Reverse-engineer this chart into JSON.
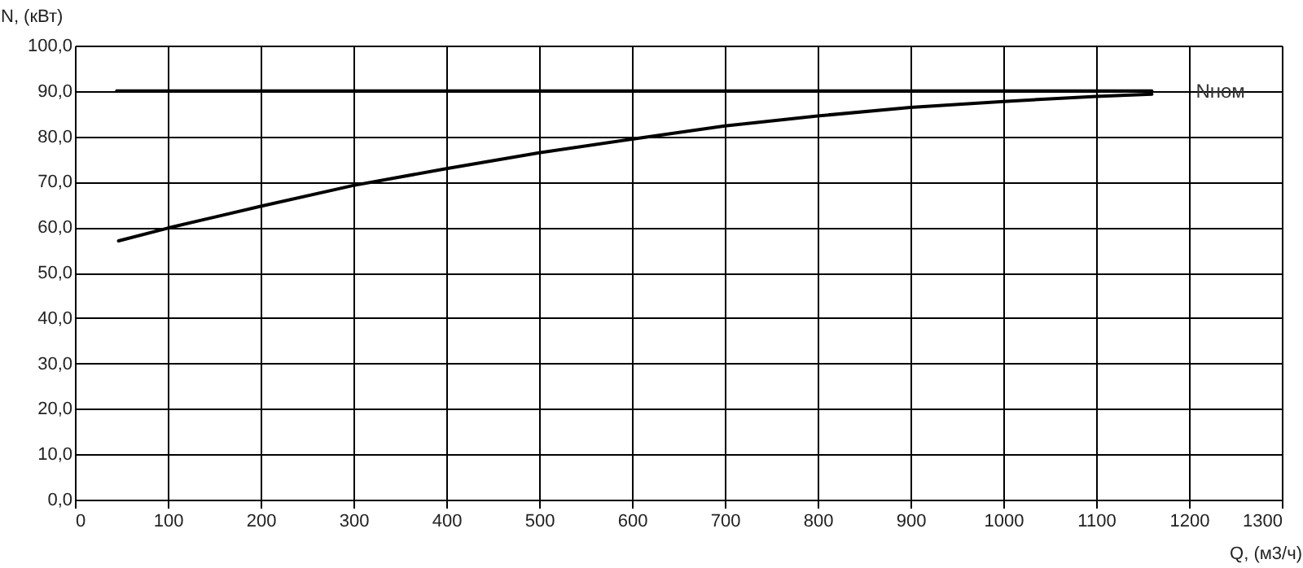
{
  "chart_data": {
    "type": "line",
    "xlabel": "Q, (м3/ч)",
    "ylabel": "N, (кВт)",
    "series": [
      {
        "x": [
          47,
          100,
          200,
          300,
          400,
          500,
          600,
          700,
          800,
          900,
          1000,
          1100,
          1160
        ],
        "values": [
          57.0,
          59.8,
          64.6,
          69.2,
          72.9,
          76.4,
          79.4,
          82.3,
          84.5,
          86.4,
          87.7,
          88.8,
          89.3
        ],
        "color": "#000000"
      },
      {
        "name": "Nном",
        "x": [
          45,
          1160
        ],
        "values": [
          90,
          90
        ],
        "color": "#000000"
      }
    ],
    "xlim": [
      0,
      1300
    ],
    "xticks": [
      0,
      100,
      200,
      300,
      400,
      500,
      600,
      700,
      800,
      900,
      1000,
      1100,
      1200,
      1300
    ],
    "ylim": [
      0,
      100
    ],
    "yticks": [
      {
        "value": 0,
        "label": "0,0"
      },
      {
        "value": 10,
        "label": "10,0"
      },
      {
        "value": 20,
        "label": "20,0"
      },
      {
        "value": 30,
        "label": "30,0"
      },
      {
        "value": 40,
        "label": "40,0"
      },
      {
        "value": 50,
        "label": "50,0"
      },
      {
        "value": 60,
        "label": "60,0"
      },
      {
        "value": 70,
        "label": "70,0"
      },
      {
        "value": 80,
        "label": "80,0"
      },
      {
        "value": 90,
        "label": "90,0"
      },
      {
        "value": 100,
        "label": "100,0"
      }
    ],
    "grid": true,
    "marker": "none",
    "line_style": "solid"
  }
}
